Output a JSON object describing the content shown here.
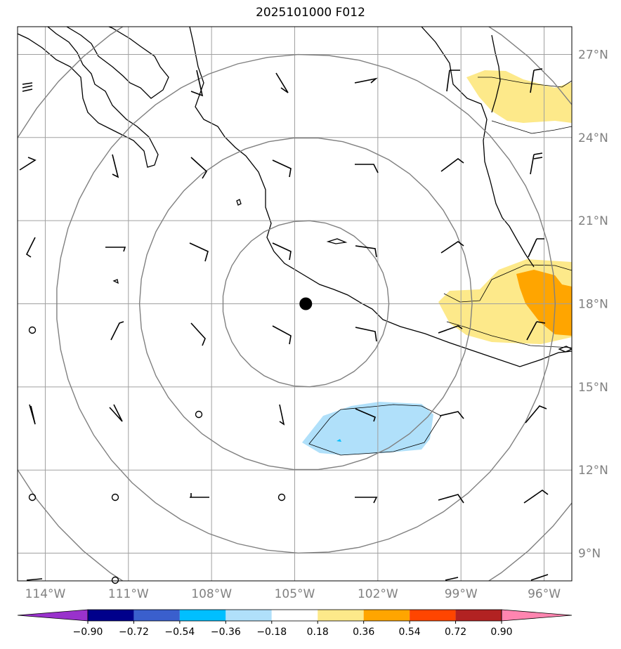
{
  "title": "2025101000 F012",
  "map": {
    "lon_range": [
      -115,
      -95
    ],
    "lat_range": [
      8,
      28
    ],
    "center": {
      "lon": -104.6,
      "lat": 18.0
    },
    "range_ring_radii_deg": [
      3,
      6,
      9,
      12
    ],
    "gridlines": true
  },
  "lat_ticks": [
    {
      "value": 27,
      "label": "27°N"
    },
    {
      "value": 24,
      "label": "24°N"
    },
    {
      "value": 21,
      "label": "21°N"
    },
    {
      "value": 18,
      "label": "18°N"
    },
    {
      "value": 15,
      "label": "15°N"
    },
    {
      "value": 12,
      "label": "12°N"
    },
    {
      "value": 9,
      "label": "9°N"
    }
  ],
  "lon_ticks": [
    {
      "value": -114,
      "label": "114°W"
    },
    {
      "value": -111,
      "label": "111°W"
    },
    {
      "value": -108,
      "label": "108°W"
    },
    {
      "value": -105,
      "label": "105°W"
    },
    {
      "value": -102,
      "label": "102°W"
    },
    {
      "value": -99,
      "label": "99°W"
    },
    {
      "value": -96,
      "label": "96°W"
    }
  ],
  "colorbar": {
    "levels": [
      "−0.90",
      "−0.72",
      "−0.54",
      "−0.36",
      "−0.18",
      "0.18",
      "0.36",
      "0.54",
      "0.72",
      "0.90"
    ],
    "colors": [
      "#9932cc",
      "#00008b",
      "#3a5fcd",
      "#00bfff",
      "#b0e0fa",
      "#ffffff",
      "#fde98a",
      "#ffa500",
      "#ff4500",
      "#b22222",
      "#ff85b0"
    ]
  },
  "colors": {
    "coast": "#000000",
    "grid": "#a0a0a0",
    "rings": "#808080",
    "barbs": "#000000",
    "center_marker": "#000000"
  }
}
